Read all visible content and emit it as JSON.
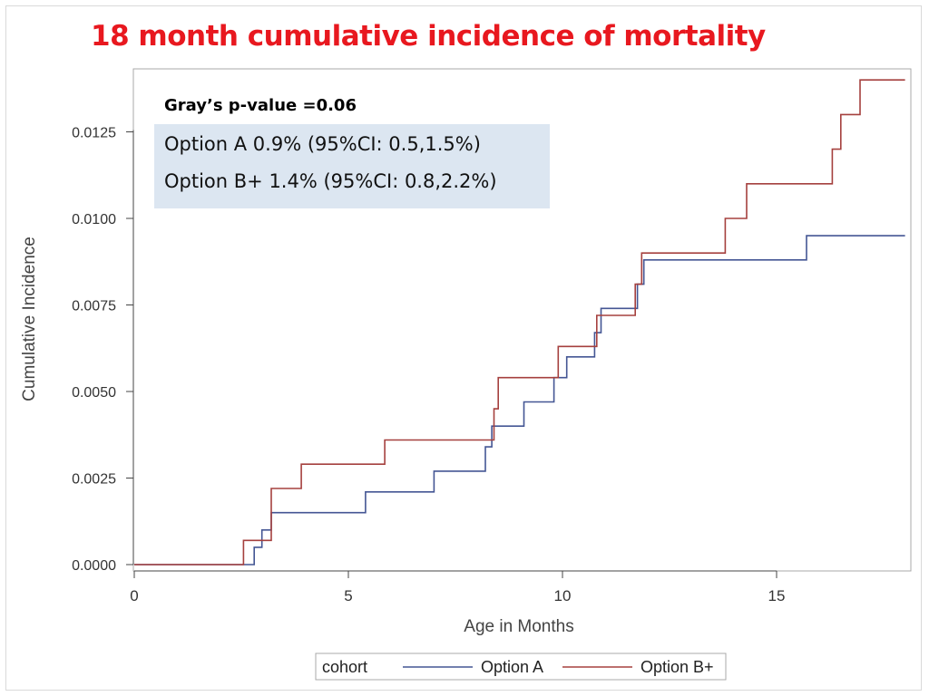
{
  "slide": {
    "title": "18 month cumulative incidence of mortality"
  },
  "annotation": {
    "pvalue": "Gray’s p-value =0.06",
    "lines": [
      "Option A 0.9% (95%CI: 0.5,1.5%)",
      "Option B+ 1.4% (95%CI: 0.8,2.2%)"
    ],
    "box_color": "#dce6f1"
  },
  "chart_data": {
    "type": "line",
    "step": true,
    "title": "",
    "xlabel": "Age in Months",
    "ylabel": "Cumulative Incidence",
    "xlim": [
      0,
      18.2
    ],
    "ylim": [
      0,
      0.0144
    ],
    "xticks": [
      0,
      5,
      10,
      15
    ],
    "xtick_labels": [
      "0",
      "5",
      "10",
      "15"
    ],
    "yticks": [
      0,
      0.0025,
      0.005,
      0.0075,
      0.01,
      0.0125
    ],
    "ytick_labels": [
      "0.0000",
      "0.0025",
      "0.0050",
      "0.0075",
      "0.0100",
      "0.0125"
    ],
    "grid": false,
    "legend": {
      "title": "cohort",
      "position": "bottom-center",
      "entries": [
        "Option A",
        "Option B+"
      ]
    },
    "series": [
      {
        "name": "Option A",
        "color": "#445694",
        "x": [
          0,
          2.8,
          2.98,
          3.2,
          5.4,
          7.0,
          8.2,
          8.35,
          9.1,
          9.8,
          10.1,
          10.75,
          10.9,
          11.75,
          11.9,
          15.7,
          18.0
        ],
        "y": [
          0,
          0.0005,
          0.001,
          0.0015,
          0.0021,
          0.0027,
          0.0034,
          0.004,
          0.0047,
          0.0054,
          0.006,
          0.0067,
          0.0074,
          0.0081,
          0.0088,
          0.0095,
          0.0095
        ]
      },
      {
        "name": "Option B+",
        "color": "#a5403e",
        "x": [
          0,
          2.55,
          3.2,
          3.9,
          5.85,
          8.4,
          8.5,
          9.9,
          10.8,
          11.7,
          11.85,
          13.8,
          14.3,
          16.3,
          16.5,
          16.95,
          18.0
        ],
        "y": [
          0,
          0.0007,
          0.0022,
          0.0029,
          0.0036,
          0.0045,
          0.0054,
          0.0063,
          0.0072,
          0.0081,
          0.009,
          0.01,
          0.011,
          0.012,
          0.013,
          0.014,
          0.014
        ]
      }
    ]
  }
}
